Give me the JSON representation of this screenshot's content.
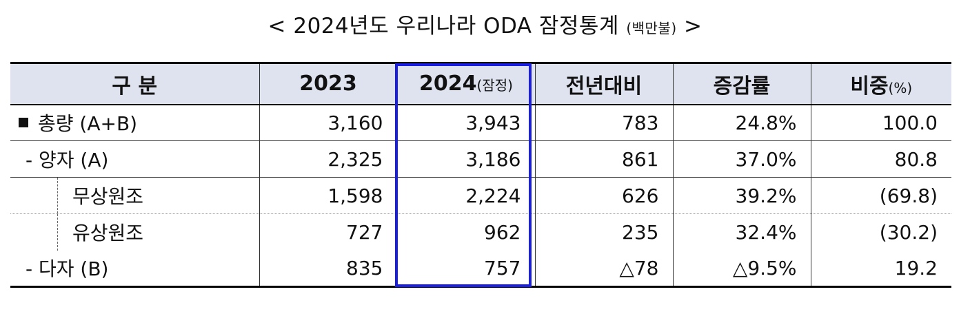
{
  "title": {
    "main": "< 2024년도 우리나라 ODA 잠정통계",
    "unit": "(백만불)",
    "end": ">"
  },
  "table": {
    "headers": [
      {
        "main": "구  분",
        "sub": ""
      },
      {
        "main": "2023",
        "sub": ""
      },
      {
        "main": "2024",
        "sub": "(잠정)"
      },
      {
        "main": "전년대비",
        "sub": ""
      },
      {
        "main": "증감률",
        "sub": ""
      },
      {
        "main": "비중",
        "sub": "(%)"
      }
    ],
    "rows": [
      {
        "label": "총량 (A+B)",
        "v2023": "3,160",
        "v2024": "3,943",
        "diff": "783",
        "rate": "24.8%",
        "share": "100.0"
      },
      {
        "label": "- 양자 (A)",
        "v2023": "2,325",
        "v2024": "3,186",
        "diff": "861",
        "rate": "37.0%",
        "share": "80.8"
      },
      {
        "label": "무상원조",
        "v2023": "1,598",
        "v2024": "2,224",
        "diff": "626",
        "rate": "39.2%",
        "share": "(69.8)"
      },
      {
        "label": "유상원조",
        "v2023": "727",
        "v2024": "962",
        "diff": "235",
        "rate": "32.4%",
        "share": "(30.2)"
      },
      {
        "label": "- 다자 (B)",
        "v2023": "835",
        "v2024": "757",
        "diff": "△78",
        "rate": "△9.5%",
        "share": "19.2"
      }
    ]
  },
  "highlight_color": "#1a1ee0"
}
